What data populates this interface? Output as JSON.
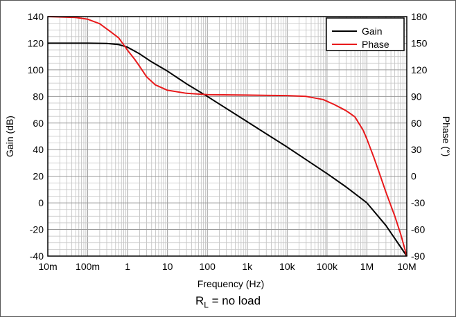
{
  "chart_data": {
    "type": "line",
    "title": "",
    "xlabel": "Frequency (Hz)",
    "ylabel": "Gain (dB)",
    "y2label": "Phase (°)",
    "xscale": "log",
    "xlim": [
      0.01,
      10000000
    ],
    "ylim": [
      -40,
      140
    ],
    "y2lim": [
      -90,
      180
    ],
    "grid": true,
    "legend": "top-right",
    "xticks": [
      {
        "v": 0.01,
        "label": "10m"
      },
      {
        "v": 0.1,
        "label": "100m"
      },
      {
        "v": 1,
        "label": "1"
      },
      {
        "v": 10,
        "label": "10"
      },
      {
        "v": 100,
        "label": "100"
      },
      {
        "v": 1000,
        "label": "1k"
      },
      {
        "v": 10000,
        "label": "10k"
      },
      {
        "v": 100000,
        "label": "100k"
      },
      {
        "v": 1000000,
        "label": "1M"
      },
      {
        "v": 10000000,
        "label": "10M"
      }
    ],
    "yticks": [
      {
        "v": 140,
        "label": "140"
      },
      {
        "v": 120,
        "label": "120"
      },
      {
        "v": 100,
        "label": "100"
      },
      {
        "v": 80,
        "label": "80"
      },
      {
        "v": 60,
        "label": "60"
      },
      {
        "v": 40,
        "label": "40"
      },
      {
        "v": 20,
        "label": "20"
      },
      {
        "v": 0,
        "label": "0"
      },
      {
        "v": -20,
        "label": "-20"
      },
      {
        "v": -40,
        "label": "-40"
      }
    ],
    "y2ticks": [
      {
        "v": 180,
        "label": "180"
      },
      {
        "v": 150,
        "label": "150"
      },
      {
        "v": 120,
        "label": "120"
      },
      {
        "v": 90,
        "label": "90"
      },
      {
        "v": 60,
        "label": "60"
      },
      {
        "v": 30,
        "label": "30"
      },
      {
        "v": 0,
        "label": "0"
      },
      {
        "v": -30,
        "label": "-30"
      },
      {
        "v": -60,
        "label": "-60"
      },
      {
        "v": -90,
        "label": "-90"
      }
    ],
    "series": [
      {
        "name": "Gain",
        "color": "#000000",
        "axis": "left",
        "x": [
          0.01,
          0.1,
          0.3,
          0.6,
          1,
          2,
          4,
          10,
          30,
          100,
          1000,
          10000,
          100000,
          300000,
          1000000,
          3000000,
          10000000
        ],
        "y": [
          120,
          120,
          119.8,
          119,
          117,
          112,
          106,
          99,
          89.5,
          80,
          61,
          42,
          22,
          12,
          0,
          -17,
          -40
        ]
      },
      {
        "name": "Phase",
        "color": "#e8191b",
        "axis": "right",
        "x": [
          0.01,
          0.05,
          0.1,
          0.2,
          0.4,
          0.6,
          1,
          1.5,
          2,
          3,
          5,
          10,
          30,
          100,
          1000,
          10000,
          30000,
          80000,
          150000,
          300000,
          500000,
          800000,
          1000000,
          1500000,
          2000000,
          3000000,
          5000000,
          7000000,
          10000000
        ],
        "y": [
          180,
          179,
          177,
          172,
          162,
          156,
          142,
          132,
          124,
          112,
          103,
          97,
          93.5,
          92,
          91.5,
          91,
          90,
          86.5,
          81,
          74,
          67,
          52,
          42,
          21,
          5,
          -18,
          -45,
          -65,
          -90
        ]
      }
    ],
    "annotation": {
      "prefix": "R",
      "subscript": "L",
      "suffix": " = no load"
    }
  }
}
